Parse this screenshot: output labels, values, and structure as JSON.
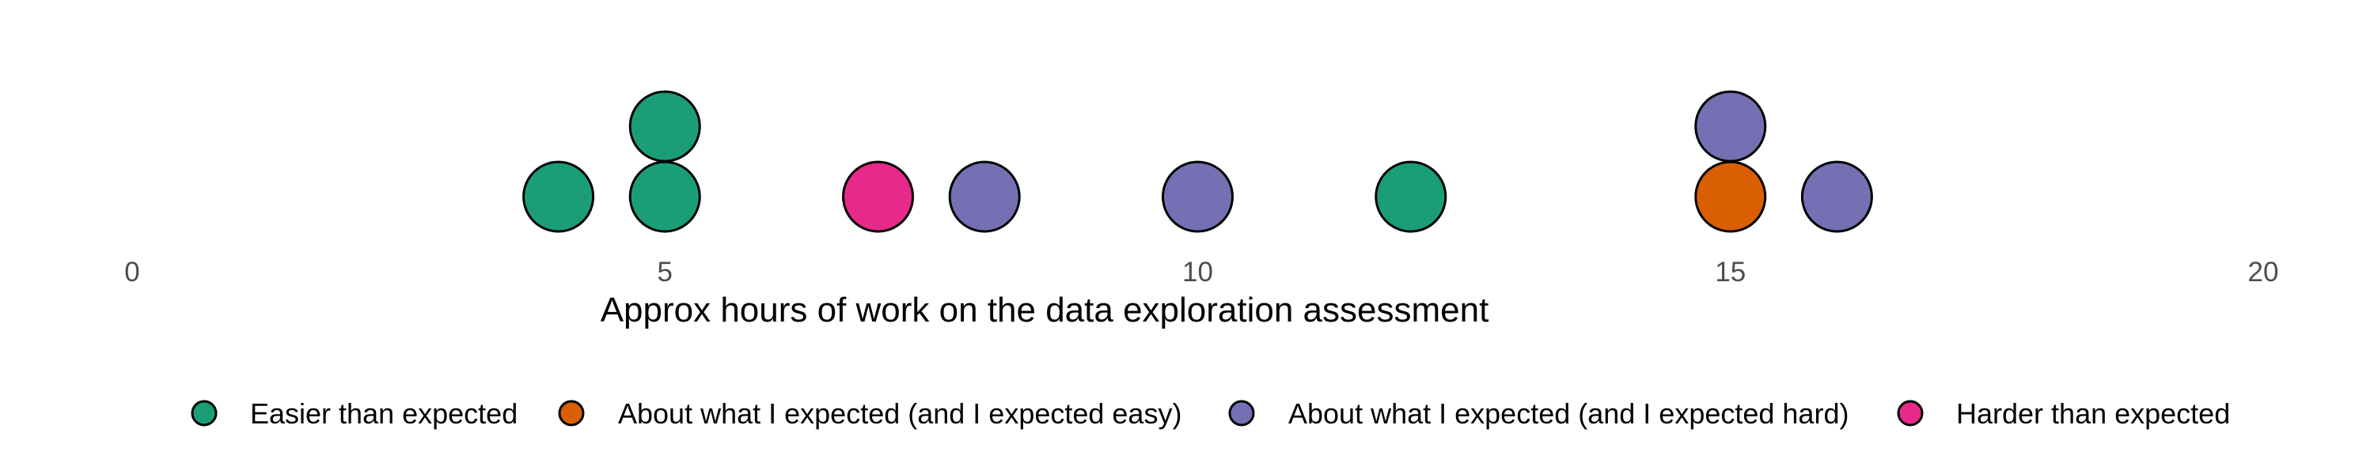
{
  "chart_data": {
    "type": "dotplot",
    "title": "",
    "xlabel": "Approx hours of work on the data exploration assessment",
    "ylabel": "",
    "xlim": [
      0,
      20
    ],
    "x_ticks": [
      "0",
      "5",
      "10",
      "15",
      "20"
    ],
    "grid": false,
    "legend_position": "bottom",
    "categories": [
      {
        "name": "Easier than expected",
        "color": "#1b9e77"
      },
      {
        "name": "About what I expected (and I expected easy)",
        "color": "#d95f02"
      },
      {
        "name": "About what I expected (and I expected hard)",
        "color": "#7570b3"
      },
      {
        "name": "Harder than expected",
        "color": "#e7298a"
      }
    ],
    "points": [
      {
        "x": 4,
        "category": 0
      },
      {
        "x": 5,
        "category": 0
      },
      {
        "x": 5,
        "category": 0
      },
      {
        "x": 7,
        "category": 3
      },
      {
        "x": 8,
        "category": 2
      },
      {
        "x": 10,
        "category": 2
      },
      {
        "x": 12,
        "category": 0
      },
      {
        "x": 15,
        "category": 1
      },
      {
        "x": 15,
        "category": 2
      },
      {
        "x": 16,
        "category": 2
      }
    ]
  }
}
